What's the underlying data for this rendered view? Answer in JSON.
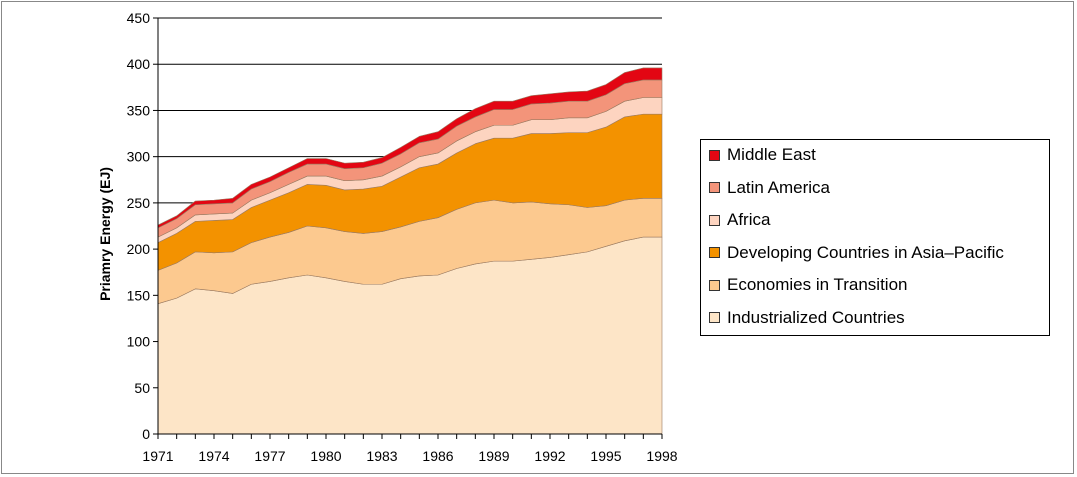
{
  "chart_data": {
    "type": "area",
    "stacked": true,
    "xlabel": "",
    "ylabel": "Priamry Energy (EJ)",
    "ylim": [
      0,
      450
    ],
    "yticks": [
      0,
      50,
      100,
      150,
      200,
      250,
      300,
      350,
      400,
      450
    ],
    "xlim": [
      1971,
      1998
    ],
    "xticks": [
      1971,
      1974,
      1977,
      1980,
      1983,
      1986,
      1989,
      1992,
      1995,
      1998
    ],
    "grid": true,
    "legend_position": "right",
    "x": [
      1971,
      1972,
      1973,
      1974,
      1975,
      1976,
      1977,
      1978,
      1979,
      1980,
      1981,
      1982,
      1983,
      1984,
      1985,
      1986,
      1987,
      1988,
      1989,
      1990,
      1991,
      1992,
      1993,
      1994,
      1995,
      1996,
      1997,
      1998
    ],
    "series": [
      {
        "name": "Industrialized Countries",
        "color": "#fde5c7",
        "values": [
          141,
          147,
          157,
          155,
          152,
          162,
          165,
          169,
          172,
          169,
          165,
          162,
          162,
          168,
          171,
          172,
          179,
          184,
          187,
          187,
          189,
          191,
          194,
          197,
          203,
          209,
          213,
          213
        ]
      },
      {
        "name": "Economies in Transition",
        "color": "#fcc98f",
        "values": [
          36,
          38,
          40,
          41,
          45,
          45,
          48,
          49,
          53,
          54,
          54,
          55,
          57,
          56,
          59,
          62,
          64,
          66,
          66,
          63,
          62,
          58,
          54,
          48,
          44,
          44,
          42,
          42
        ]
      },
      {
        "name": "Developing Countries in Asia–Pacific",
        "color": "#f39200",
        "values": [
          30,
          32,
          33,
          35,
          35,
          38,
          40,
          43,
          45,
          46,
          45,
          48,
          49,
          54,
          58,
          58,
          61,
          64,
          67,
          70,
          74,
          76,
          78,
          81,
          85,
          90,
          91,
          91
        ]
      },
      {
        "name": "Africa",
        "color": "#fdd4c0",
        "values": [
          6,
          6,
          7,
          7,
          7,
          8,
          8,
          9,
          9,
          10,
          10,
          10,
          11,
          11,
          12,
          12,
          13,
          13,
          14,
          14,
          15,
          15,
          16,
          16,
          17,
          17,
          18,
          18
        ]
      },
      {
        "name": "Latin America",
        "color": "#f3947a",
        "values": [
          10,
          10,
          11,
          11,
          11,
          12,
          12,
          13,
          13,
          13,
          13,
          13,
          14,
          14,
          15,
          15,
          16,
          16,
          17,
          17,
          17,
          18,
          18,
          18,
          18,
          19,
          19,
          19
        ]
      },
      {
        "name": "Middle East",
        "color": "#e30613",
        "values": [
          3,
          3,
          4,
          4,
          5,
          5,
          5,
          5,
          6,
          6,
          6,
          6,
          6,
          7,
          7,
          8,
          8,
          9,
          9,
          9,
          9,
          10,
          10,
          11,
          11,
          12,
          13,
          13
        ]
      }
    ],
    "legend_order": [
      "Middle East",
      "Latin America",
      "Africa",
      "Developing Countries in Asia–Pacific",
      "Economies in Transition",
      "Industrialized Countries"
    ]
  }
}
